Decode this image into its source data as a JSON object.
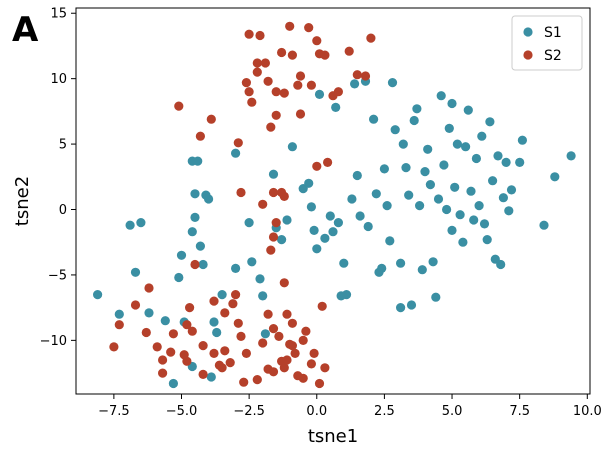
{
  "panel_label": "A",
  "colors": {
    "S1": "#3a8fa3",
    "S2": "#b5402a",
    "axis": "#000000",
    "legend_border": "#cccccc"
  },
  "chart_data": {
    "type": "scatter",
    "title": "",
    "xlabel": "tsne1",
    "ylabel": "tsne2",
    "xlim": [
      -8.9,
      10.1
    ],
    "ylim": [
      -14.1,
      15.4
    ],
    "xticks": [
      -7.5,
      -5.0,
      -2.5,
      0.0,
      2.5,
      5.0,
      7.5,
      10.0
    ],
    "xtick_labels": [
      "−7.5",
      "−5.0",
      "−2.5",
      "0.0",
      "2.5",
      "5.0",
      "7.5",
      "10.0"
    ],
    "yticks": [
      -10,
      -5,
      0,
      5,
      10,
      15
    ],
    "ytick_labels": [
      "−10",
      "−5",
      "0",
      "5",
      "10",
      "15"
    ],
    "grid": false,
    "legend_position": "top-right",
    "series": [
      {
        "name": "S1",
        "color": "#3a8fa3",
        "points": [
          [
            -8.1,
            -6.5
          ],
          [
            -7.3,
            -8.0
          ],
          [
            -6.9,
            -1.2
          ],
          [
            -6.7,
            -4.8
          ],
          [
            -6.5,
            -1.0
          ],
          [
            -6.2,
            -7.9
          ],
          [
            -5.6,
            -8.5
          ],
          [
            -5.1,
            -5.2
          ],
          [
            -5.0,
            -3.5
          ],
          [
            -4.9,
            -8.6
          ],
          [
            -4.6,
            3.7
          ],
          [
            -4.4,
            3.7
          ],
          [
            -4.5,
            1.2
          ],
          [
            -4.5,
            -0.6
          ],
          [
            -4.3,
            -2.8
          ],
          [
            -4.2,
            -4.2
          ],
          [
            -4.0,
            0.8
          ],
          [
            -3.8,
            -8.6
          ],
          [
            -3.7,
            -9.4
          ],
          [
            -3.5,
            -6.5
          ],
          [
            -3.0,
            -4.5
          ],
          [
            -3.0,
            4.3
          ],
          [
            -2.5,
            -1.0
          ],
          [
            -2.4,
            -4.0
          ],
          [
            -2.1,
            -5.3
          ],
          [
            -2.0,
            -6.6
          ],
          [
            -1.9,
            -9.5
          ],
          [
            -1.6,
            2.7
          ],
          [
            -1.5,
            -1.4
          ],
          [
            -1.3,
            -2.3
          ],
          [
            -1.1,
            -0.8
          ],
          [
            -0.9,
            4.8
          ],
          [
            -0.5,
            1.6
          ],
          [
            -0.3,
            2.0
          ],
          [
            -0.2,
            0.2
          ],
          [
            -0.1,
            -1.6
          ],
          [
            0.0,
            -3.0
          ],
          [
            0.1,
            8.8
          ],
          [
            0.3,
            -2.2
          ],
          [
            0.5,
            -0.5
          ],
          [
            0.6,
            -1.7
          ],
          [
            0.8,
            -1.0
          ],
          [
            0.7,
            7.8
          ],
          [
            0.9,
            -6.6
          ],
          [
            1.0,
            -4.1
          ],
          [
            1.1,
            -6.5
          ],
          [
            1.3,
            0.8
          ],
          [
            1.4,
            9.6
          ],
          [
            1.5,
            2.6
          ],
          [
            1.6,
            -0.5
          ],
          [
            1.8,
            9.8
          ],
          [
            1.9,
            -1.3
          ],
          [
            2.1,
            6.9
          ],
          [
            2.2,
            1.2
          ],
          [
            2.3,
            -4.8
          ],
          [
            2.4,
            -4.5
          ],
          [
            2.5,
            3.1
          ],
          [
            2.6,
            0.3
          ],
          [
            2.7,
            -2.4
          ],
          [
            2.8,
            9.7
          ],
          [
            2.9,
            6.1
          ],
          [
            3.1,
            -4.1
          ],
          [
            3.1,
            -7.5
          ],
          [
            3.2,
            5.0
          ],
          [
            3.3,
            3.2
          ],
          [
            3.4,
            1.1
          ],
          [
            3.5,
            -7.3
          ],
          [
            3.6,
            6.8
          ],
          [
            3.7,
            7.7
          ],
          [
            3.8,
            0.3
          ],
          [
            3.9,
            -4.6
          ],
          [
            4.0,
            2.9
          ],
          [
            4.1,
            4.6
          ],
          [
            4.2,
            1.9
          ],
          [
            4.3,
            -4.0
          ],
          [
            4.4,
            -6.7
          ],
          [
            4.5,
            0.8
          ],
          [
            4.6,
            8.7
          ],
          [
            4.7,
            3.4
          ],
          [
            4.8,
            0.0
          ],
          [
            4.9,
            6.2
          ],
          [
            5.0,
            8.1
          ],
          [
            5.0,
            -1.6
          ],
          [
            5.1,
            1.7
          ],
          [
            5.2,
            5.0
          ],
          [
            5.3,
            -0.4
          ],
          [
            5.4,
            -2.5
          ],
          [
            5.5,
            4.8
          ],
          [
            5.6,
            7.6
          ],
          [
            5.7,
            1.4
          ],
          [
            5.8,
            -0.8
          ],
          [
            5.9,
            3.9
          ],
          [
            6.0,
            0.3
          ],
          [
            6.1,
            5.6
          ],
          [
            6.2,
            -1.1
          ],
          [
            6.3,
            -2.3
          ],
          [
            6.4,
            6.7
          ],
          [
            6.5,
            2.2
          ],
          [
            6.6,
            -3.8
          ],
          [
            6.7,
            4.1
          ],
          [
            6.8,
            -4.2
          ],
          [
            6.9,
            0.9
          ],
          [
            7.0,
            3.6
          ],
          [
            7.1,
            -0.1
          ],
          [
            7.2,
            1.5
          ],
          [
            7.5,
            3.6
          ],
          [
            7.6,
            5.3
          ],
          [
            8.4,
            -1.2
          ],
          [
            8.8,
            2.5
          ],
          [
            9.4,
            4.1
          ],
          [
            -5.3,
            -13.3
          ],
          [
            -4.6,
            -12.0
          ],
          [
            -3.9,
            -12.8
          ],
          [
            -4.1,
            1.1
          ],
          [
            -4.6,
            -1.7
          ]
        ]
      },
      {
        "name": "S2",
        "color": "#b5402a",
        "points": [
          [
            -7.3,
            -8.8
          ],
          [
            -7.5,
            -10.5
          ],
          [
            -6.7,
            -7.3
          ],
          [
            -6.3,
            -9.4
          ],
          [
            -6.2,
            -6.0
          ],
          [
            -5.9,
            -10.5
          ],
          [
            -5.7,
            -11.5
          ],
          [
            -5.4,
            -10.9
          ],
          [
            -5.3,
            -9.5
          ],
          [
            -5.1,
            7.9
          ],
          [
            -4.9,
            -11.1
          ],
          [
            -4.8,
            -11.6
          ],
          [
            -4.7,
            -7.5
          ],
          [
            -4.6,
            -9.3
          ],
          [
            -4.3,
            5.6
          ],
          [
            -4.2,
            -12.6
          ],
          [
            -3.9,
            6.9
          ],
          [
            -3.8,
            -11.0
          ],
          [
            -3.6,
            -11.9
          ],
          [
            -3.4,
            -10.8
          ],
          [
            -3.2,
            -11.7
          ],
          [
            -2.9,
            -8.7
          ],
          [
            -2.9,
            5.1
          ],
          [
            -2.8,
            1.3
          ],
          [
            -2.7,
            -13.2
          ],
          [
            -2.6,
            -11.0
          ],
          [
            -2.6,
            9.7
          ],
          [
            -2.5,
            9.0
          ],
          [
            -2.4,
            8.2
          ],
          [
            -2.2,
            11.2
          ],
          [
            -2.1,
            13.3
          ],
          [
            -2.0,
            -10.2
          ],
          [
            -1.9,
            11.2
          ],
          [
            -1.8,
            -12.2
          ],
          [
            -1.7,
            6.3
          ],
          [
            -1.6,
            -12.4
          ],
          [
            -1.5,
            9.0
          ],
          [
            -1.5,
            7.2
          ],
          [
            -1.4,
            -9.7
          ],
          [
            -1.3,
            -11.6
          ],
          [
            -1.2,
            -12.1
          ],
          [
            -1.1,
            -8.0
          ],
          [
            -1.0,
            14.0
          ],
          [
            -0.9,
            -10.4
          ],
          [
            -0.8,
            -11.0
          ],
          [
            -0.7,
            -12.7
          ],
          [
            -0.7,
            9.5
          ],
          [
            -0.6,
            7.3
          ],
          [
            -0.5,
            -10.0
          ],
          [
            -0.4,
            -9.3
          ],
          [
            -0.3,
            13.9
          ],
          [
            -0.2,
            -11.8
          ],
          [
            -0.1,
            -11.0
          ],
          [
            0.0,
            12.9
          ],
          [
            0.1,
            11.9
          ],
          [
            0.2,
            -7.4
          ],
          [
            0.4,
            3.6
          ],
          [
            1.2,
            12.1
          ],
          [
            1.5,
            10.3
          ],
          [
            2.0,
            13.1
          ],
          [
            -1.6,
            1.3
          ],
          [
            -1.3,
            1.3
          ],
          [
            -1.5,
            -1.0
          ],
          [
            -1.6,
            -2.1
          ],
          [
            -2.0,
            0.4
          ],
          [
            -0.9,
            -8.7
          ],
          [
            -1.2,
            -5.6
          ],
          [
            -0.6,
            10.2
          ],
          [
            0.6,
            8.7
          ],
          [
            -1.3,
            12.0
          ],
          [
            -1.2,
            1.0
          ],
          [
            -1.7,
            -3.1
          ],
          [
            -2.2,
            -13.0
          ],
          [
            -3.1,
            -7.2
          ],
          [
            -3.4,
            -7.9
          ],
          [
            -2.8,
            -9.7
          ],
          [
            -1.0,
            -10.3
          ],
          [
            -0.5,
            -12.9
          ],
          [
            0.1,
            -13.3
          ],
          [
            0.3,
            -12.1
          ],
          [
            -5.7,
            -12.5
          ],
          [
            -4.2,
            -10.4
          ],
          [
            -4.5,
            -4.2
          ],
          [
            -0.2,
            9.5
          ],
          [
            -1.8,
            9.8
          ],
          [
            -2.5,
            13.4
          ],
          [
            0.8,
            9.0
          ],
          [
            1.8,
            10.2
          ],
          [
            0.0,
            3.3
          ],
          [
            -0.9,
            11.8
          ],
          [
            -1.8,
            -8.0
          ],
          [
            -3.0,
            -6.5
          ],
          [
            -4.8,
            -8.8
          ],
          [
            -3.8,
            -7.0
          ],
          [
            -1.1,
            -11.5
          ],
          [
            -2.2,
            10.5
          ],
          [
            -1.2,
            8.9
          ],
          [
            0.3,
            11.8
          ],
          [
            -1.6,
            -9.1
          ],
          [
            -3.5,
            -12.1
          ]
        ]
      }
    ]
  }
}
